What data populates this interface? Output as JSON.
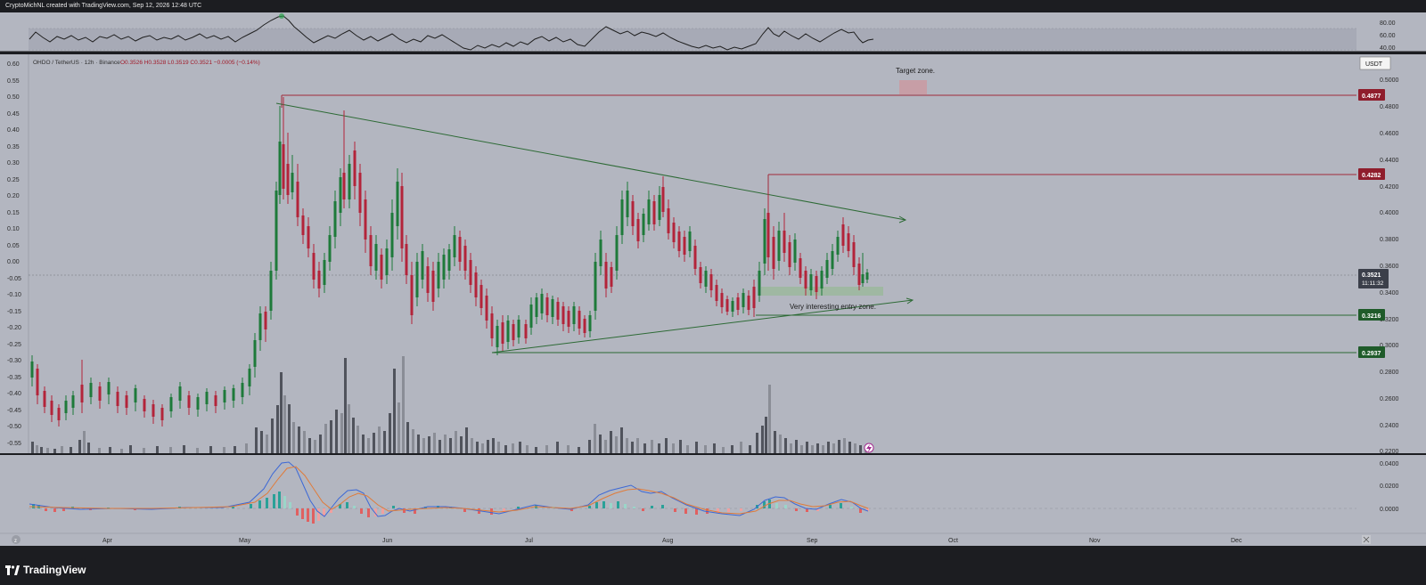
{
  "header": {
    "text": "CryptoMichNL created with TradingView.com, Sep 12, 2026 12:48 UTC"
  },
  "footer": {
    "logo_text": "TradingView"
  },
  "main": {
    "symbol_line": "OHDO / TetherUS · 12h · Binance",
    "ohlc": "O0.3526 H0.3528 L0.3519 C0.3521 −0.0005 (−0.14%)",
    "currency_button": "USDT",
    "annotations": {
      "target": "Target zone.",
      "entry": "Very interesting entry zone."
    },
    "price_axis_ticks": [
      "0.5000",
      "0.4800",
      "0.4600",
      "0.4400",
      "0.4200",
      "0.4000",
      "0.3800",
      "0.3600",
      "0.3400",
      "0.3200",
      "0.3000",
      "0.2800",
      "0.2600",
      "0.2400",
      "0.2200"
    ],
    "left_axis_ticks": [
      "0.60",
      "0.55",
      "0.50",
      "0.45",
      "0.40",
      "0.35",
      "0.30",
      "0.25",
      "0.20",
      "0.15",
      "0.10",
      "0.05",
      "0.00",
      "-0.05",
      "-0.10",
      "-0.15",
      "-0.20",
      "-0.25",
      "-0.30",
      "-0.35",
      "-0.40",
      "-0.45",
      "-0.50",
      "-0.55"
    ],
    "price_badges": {
      "r1": "0.4877",
      "r2": "0.4282",
      "current": "0.3521",
      "countdown": "11:11:32",
      "s1": "0.3216",
      "s2": "0.2937"
    },
    "colors": {
      "resistance": "#8f1d2c",
      "support": "#1f5b2a",
      "current": "#3b3f4a",
      "bull": "#1e7a3a",
      "bear": "#b3243a"
    }
  },
  "rsi": {
    "ticks": [
      "80.00",
      "60.00",
      "40.00"
    ]
  },
  "macd": {
    "ticks": [
      "0.0400",
      "0.0200",
      "0.0000"
    ]
  },
  "time_axis": {
    "labels": [
      "Apr",
      "May",
      "Jun",
      "Jul",
      "Aug",
      "Sep",
      "Oct",
      "Nov",
      "Dec"
    ]
  },
  "icons": {
    "lightning": "lightning-icon",
    "settings": "z-icon"
  },
  "chart_data": {
    "type": "line",
    "title": "",
    "ylabel": "",
    "ylim": [
      0.22,
      0.52
    ],
    "series": [
      {
        "name": "",
        "values": [
          0.251,
          0.244,
          0.258,
          0.262,
          0.263,
          0.275,
          0.33,
          0.445,
          0.38,
          0.34,
          0.43,
          0.365,
          0.385,
          0.37,
          0.34,
          0.33,
          0.375,
          0.35,
          0.33,
          0.305,
          0.315,
          0.335,
          0.322,
          0.37,
          0.4,
          0.37,
          0.405,
          0.37,
          0.36,
          0.34,
          0.335,
          0.39,
          0.355,
          0.37,
          0.345,
          0.385,
          0.35,
          0.36,
          0.352
        ]
      }
    ]
  }
}
